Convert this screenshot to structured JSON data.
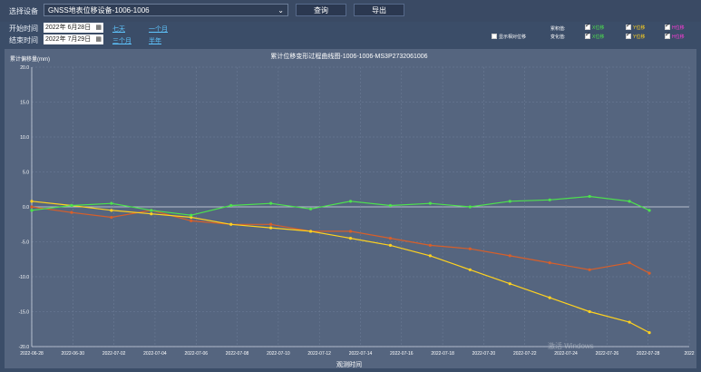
{
  "toolbar": {
    "device_label": "选择设备",
    "device_value": "GNSS地表位移设备-1006-1006",
    "query_label": "查询",
    "export_label": "导出",
    "start_label": "开始时间",
    "start_value": "2022年  6月28日",
    "end_label": "结束时间",
    "end_value": "2022年  7月29日",
    "quick": [
      "七天",
      "一个月",
      "三个月",
      "半年"
    ]
  },
  "options": {
    "relative_label": "显示相对位移",
    "accum_label": "累积值:",
    "change_label": "变化值:",
    "x_label": "X位移",
    "y_label": "Y位移",
    "h_label": "H位移",
    "x_color": "#4de24d",
    "y_color": "#ffd21f",
    "h_color": "#ff3bd8"
  },
  "chart_data": {
    "type": "line",
    "title": "累计位移变形过程曲线图-1006-1006-MS3P2732061006",
    "ylabel": "累计偏移量(mm)",
    "xlabel": "观测时间",
    "ylim": [
      -20,
      20
    ],
    "yticks": [
      "20.0",
      "15.0",
      "10.0",
      "5.0",
      "0.0",
      "-5.0",
      "-10.0",
      "-15.0",
      "-20.0"
    ],
    "xticks": [
      "2022-06-28",
      "2022-06-30",
      "2022-07-02",
      "2022-07-04",
      "2022-07-06",
      "2022-07-08",
      "2022-07-10",
      "2022-07-12",
      "2022-07-14",
      "2022-07-16",
      "2022-07-18",
      "2022-07-20",
      "2022-07-22",
      "2022-07-24",
      "2022-07-26",
      "2022-07-28",
      "2022"
    ],
    "x_start": "2022-06-28",
    "x_end": "2022-07-29",
    "grid": true,
    "series": [
      {
        "name": "X位移",
        "color": "#4de24d",
        "x": [
          "2022-06-28",
          "2022-06-30",
          "2022-07-02",
          "2022-07-04",
          "2022-07-06",
          "2022-07-08",
          "2022-07-10",
          "2022-07-12",
          "2022-07-14",
          "2022-07-16",
          "2022-07-18",
          "2022-07-20",
          "2022-07-22",
          "2022-07-24",
          "2022-07-26",
          "2022-07-28",
          "2022-07-29"
        ],
        "y": [
          -0.5,
          0.2,
          0.5,
          -0.5,
          -1.2,
          0.2,
          0.5,
          -0.3,
          0.8,
          0.2,
          0.5,
          0.0,
          0.8,
          1.0,
          1.5,
          0.8,
          -0.5
        ]
      },
      {
        "name": "Y位移",
        "color": "#ffd21f",
        "x": [
          "2022-06-28",
          "2022-06-30",
          "2022-07-02",
          "2022-07-04",
          "2022-07-06",
          "2022-07-08",
          "2022-07-10",
          "2022-07-12",
          "2022-07-14",
          "2022-07-16",
          "2022-07-18",
          "2022-07-20",
          "2022-07-22",
          "2022-07-24",
          "2022-07-26",
          "2022-07-28",
          "2022-07-29"
        ],
        "y": [
          0.8,
          0.2,
          -0.5,
          -1.0,
          -1.5,
          -2.5,
          -3.0,
          -3.5,
          -4.5,
          -5.5,
          -7.0,
          -9.0,
          -11.0,
          -13.0,
          -15.0,
          -16.5,
          -18.0
        ]
      },
      {
        "name": "变化值",
        "color": "#d75f2a",
        "x": [
          "2022-06-28",
          "2022-06-30",
          "2022-07-02",
          "2022-07-04",
          "2022-07-06",
          "2022-07-08",
          "2022-07-10",
          "2022-07-12",
          "2022-07-14",
          "2022-07-16",
          "2022-07-18",
          "2022-07-20",
          "2022-07-22",
          "2022-07-24",
          "2022-07-26",
          "2022-07-28",
          "2022-07-29"
        ],
        "y": [
          0.0,
          -0.8,
          -1.5,
          -0.5,
          -2.0,
          -2.5,
          -2.5,
          -3.5,
          -3.5,
          -4.5,
          -5.5,
          -6.0,
          -7.0,
          -8.0,
          -9.0,
          -8.0,
          -9.5
        ]
      }
    ]
  },
  "watermark": "激活 Windows"
}
